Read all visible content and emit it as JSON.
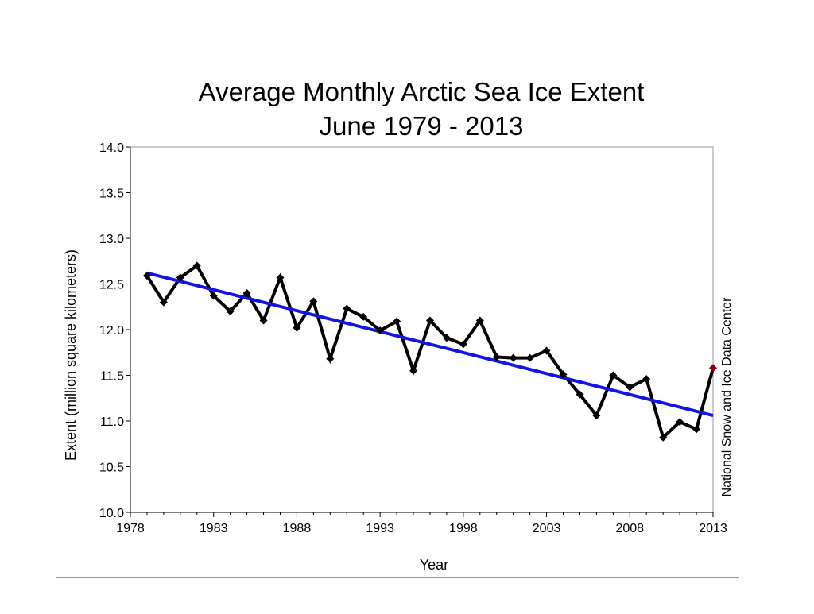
{
  "chart_data": {
    "type": "line",
    "title": "Average Monthly Arctic Sea Ice Extent",
    "subtitle": "June 1979 - 2013",
    "xlabel": "Year",
    "ylabel": "Extent (million square kilometers)",
    "credit": "National Snow and Ice Data Center",
    "xlim": [
      1978,
      2013
    ],
    "ylim": [
      10.0,
      14.0
    ],
    "xticks": [
      "1978",
      "1983",
      "1988",
      "1993",
      "1998",
      "2003",
      "2008",
      "2013"
    ],
    "yticks": [
      "10.0",
      "10.5",
      "11.0",
      "11.5",
      "12.0",
      "12.5",
      "13.0",
      "13.5",
      "14.0"
    ],
    "grid": false,
    "x": [
      1979,
      1980,
      1981,
      1982,
      1983,
      1984,
      1985,
      1986,
      1987,
      1988,
      1989,
      1990,
      1991,
      1992,
      1993,
      1994,
      1995,
      1996,
      1997,
      1998,
      1999,
      2000,
      2001,
      2002,
      2003,
      2004,
      2005,
      2006,
      2007,
      2008,
      2009,
      2010,
      2011,
      2012,
      2013
    ],
    "series": [
      {
        "values": [
          12.59,
          12.3,
          12.57,
          12.7,
          12.37,
          12.2,
          12.4,
          12.1,
          12.57,
          12.02,
          12.31,
          11.68,
          12.23,
          12.14,
          11.99,
          12.09,
          11.55,
          12.1,
          11.91,
          11.84,
          12.1,
          11.7,
          11.69,
          11.69,
          11.77,
          11.51,
          11.29,
          11.06,
          11.5,
          11.37,
          11.46,
          10.82,
          10.99,
          10.91,
          11.58
        ],
        "color": "#000000",
        "highlight_last_color": "#8b0000"
      }
    ],
    "trend": {
      "x": [
        1979,
        2013
      ],
      "y": [
        12.62,
        11.06
      ],
      "color": "#1414e6"
    }
  }
}
